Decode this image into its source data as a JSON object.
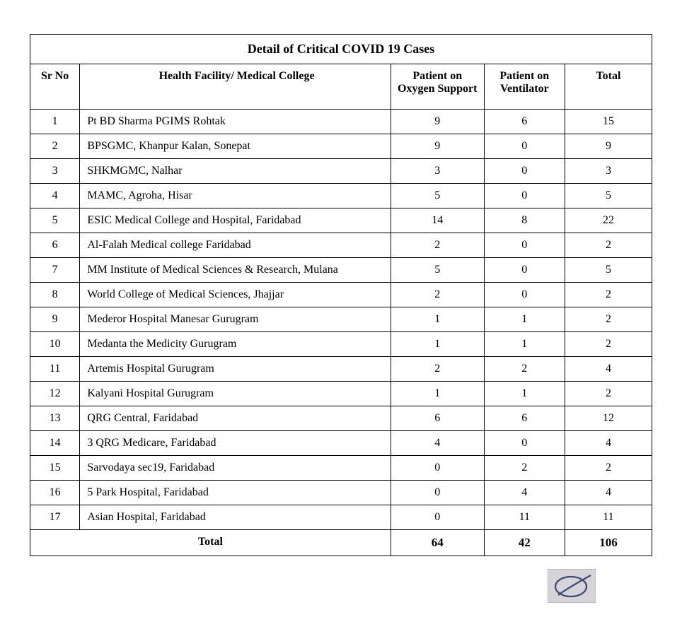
{
  "title": "Detail of Critical COVID 19 Cases",
  "columns": {
    "sr": "Sr No",
    "facility": "Health Facility/ Medical College",
    "oxygen": "Patient on Oxygen Support",
    "ventilator": "Patient on Ventilator",
    "total": "Total"
  },
  "rows": [
    {
      "sr": "1",
      "facility": "Pt BD Sharma PGIMS Rohtak",
      "oxygen": "9",
      "ventilator": "6",
      "total": "15"
    },
    {
      "sr": "2",
      "facility": "BPSGMC, Khanpur Kalan, Sonepat",
      "oxygen": "9",
      "ventilator": "0",
      "total": "9"
    },
    {
      "sr": "3",
      "facility": "SHKMGMC, Nalhar",
      "oxygen": "3",
      "ventilator": "0",
      "total": "3"
    },
    {
      "sr": "4",
      "facility": "MAMC, Agroha, Hisar",
      "oxygen": "5",
      "ventilator": "0",
      "total": "5"
    },
    {
      "sr": "5",
      "facility": "ESIC Medical College and Hospital, Faridabad",
      "oxygen": "14",
      "ventilator": "8",
      "total": "22"
    },
    {
      "sr": "6",
      "facility": "Al-Falah Medical college Faridabad",
      "oxygen": "2",
      "ventilator": "0",
      "total": "2"
    },
    {
      "sr": "7",
      "facility": "MM Institute of Medical Sciences & Research, Mulana",
      "oxygen": "5",
      "ventilator": "0",
      "total": "5"
    },
    {
      "sr": "8",
      "facility": "World College of Medical Sciences, Jhajjar",
      "oxygen": "2",
      "ventilator": "0",
      "total": "2"
    },
    {
      "sr": "9",
      "facility": "Mederor Hospital   Manesar Gurugram",
      "oxygen": "1",
      "ventilator": "1",
      "total": "2"
    },
    {
      "sr": "10",
      "facility": "Medanta the Medicity  Gurugram",
      "oxygen": "1",
      "ventilator": "1",
      "total": "2"
    },
    {
      "sr": "11",
      "facility": "Artemis Hospital Gurugram",
      "oxygen": "2",
      "ventilator": "2",
      "total": "4"
    },
    {
      "sr": "12",
      "facility": "Kalyani Hospital Gurugram",
      "oxygen": "1",
      "ventilator": "1",
      "total": "2"
    },
    {
      "sr": "13",
      "facility": "QRG Central, Faridabad",
      "oxygen": "6",
      "ventilator": "6",
      "total": "12"
    },
    {
      "sr": "14",
      "facility": "3 QRG Medicare, Faridabad",
      "oxygen": "4",
      "ventilator": "0",
      "total": "4"
    },
    {
      "sr": "15",
      "facility": "Sarvodaya sec19, Faridabad",
      "oxygen": "0",
      "ventilator": "2",
      "total": "2"
    },
    {
      "sr": "16",
      "facility": "5 Park Hospital, Faridabad",
      "oxygen": "0",
      "ventilator": "4",
      "total": "4"
    },
    {
      "sr": "17",
      "facility": "Asian Hospital, Faridabad",
      "oxygen": "0",
      "ventilator": "11",
      "total": "11"
    }
  ],
  "totals": {
    "label": "Total",
    "oxygen": "64",
    "ventilator": "42",
    "total": "106"
  },
  "signature": {
    "stroke": "#3a4a73",
    "bg": "#d6d4d8"
  }
}
